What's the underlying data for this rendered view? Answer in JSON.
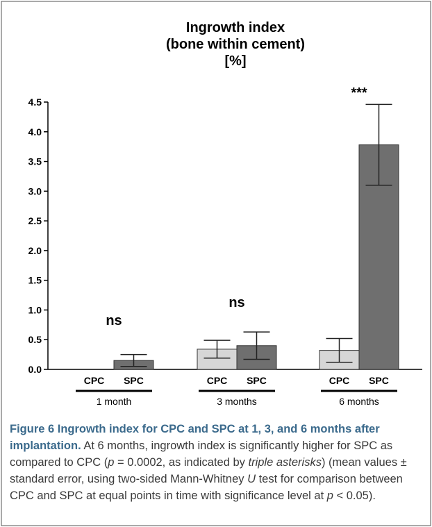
{
  "chart_data": {
    "type": "bar",
    "title": [
      "Ingrowth index",
      "(bone within cement)",
      "[%]"
    ],
    "ylim": [
      0,
      4.5
    ],
    "yticks": [
      "0.0",
      "0.5",
      "1.0",
      "1.5",
      "2.0",
      "2.5",
      "3.0",
      "3.5",
      "4.0",
      "4.5"
    ],
    "groups": [
      {
        "name": "1 month",
        "significance": "ns",
        "bars": [
          {
            "label": "CPC",
            "value": 0.0,
            "error": 0.0
          },
          {
            "label": "SPC",
            "value": 0.15,
            "error": 0.1
          }
        ]
      },
      {
        "name": "3 months",
        "significance": "ns",
        "bars": [
          {
            "label": "CPC",
            "value": 0.34,
            "error": 0.15
          },
          {
            "label": "SPC",
            "value": 0.4,
            "error": 0.23
          }
        ]
      },
      {
        "name": "6 months",
        "significance": "***",
        "bars": [
          {
            "label": "CPC",
            "value": 0.32,
            "error": 0.2
          },
          {
            "label": "SPC",
            "value": 3.78,
            "error": 0.68
          }
        ]
      }
    ],
    "colors": {
      "CPC": "#d6d6d6",
      "SPC": "#6f6f6f"
    }
  },
  "caption": {
    "figure_label": "Figure 6 Ingrowth index for CPC and SPC at 1, 3, and 6 months after implantation.",
    "text_1": " At 6 months, ingrowth index is significantly higher for SPC as compared to CPC (",
    "p_symbol": "p",
    "text_2": " = 0.0002, as indicated by ",
    "italic_phrase": "triple asterisks",
    "text_3": ") (mean values ± standard error, using two-sided Mann-Whitney ",
    "u_symbol": "U",
    "text_4": " test for comparison between CPC and SPC at equal points in time with significance level at ",
    "p_symbol_2": "p",
    "text_5": " < 0.05)."
  }
}
